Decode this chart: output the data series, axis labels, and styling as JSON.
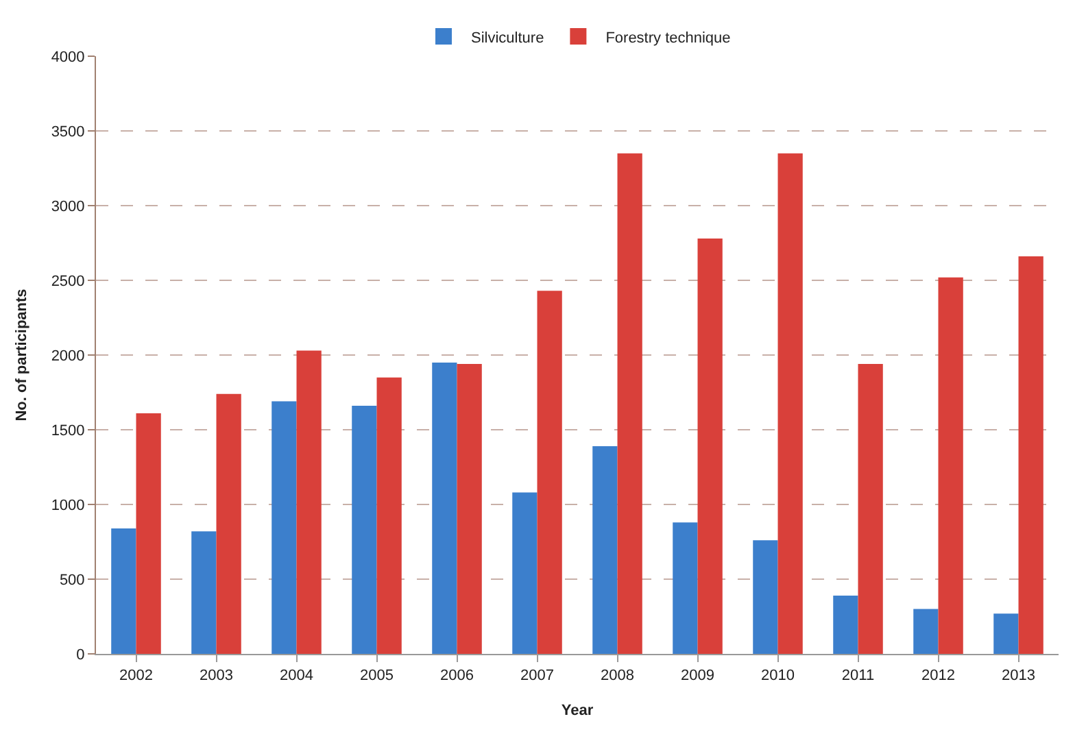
{
  "chart_data": {
    "type": "bar",
    "xlabel": "Year",
    "ylabel": "No. of participants",
    "categories": [
      "2002",
      "2003",
      "2004",
      "2005",
      "2006",
      "2007",
      "2008",
      "2009",
      "2010",
      "2011",
      "2012",
      "2013"
    ],
    "series": [
      {
        "name": "Silviculture",
        "color": "#3c7fcc",
        "values": [
          840,
          820,
          1690,
          1660,
          1950,
          1080,
          1390,
          880,
          760,
          390,
          300,
          270
        ]
      },
      {
        "name": "Forestry technique",
        "color": "#d9403a",
        "values": [
          1610,
          1740,
          2030,
          1850,
          1940,
          2430,
          3350,
          2780,
          3350,
          1940,
          2520,
          2660
        ]
      }
    ],
    "ylim": [
      0,
      4000
    ],
    "yticks": [
      0,
      500,
      1000,
      1500,
      2000,
      2500,
      3000,
      3500,
      4000
    ],
    "grid": "y",
    "legend": "top"
  }
}
